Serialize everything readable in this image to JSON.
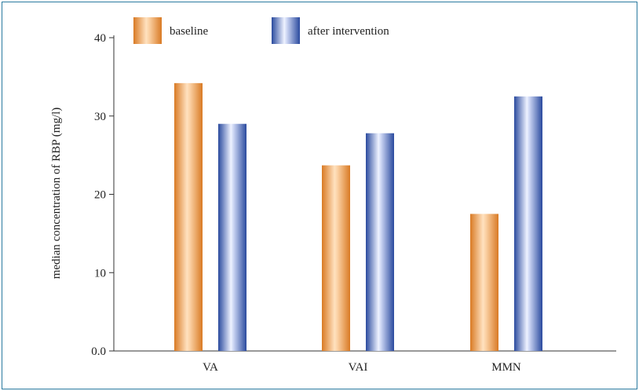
{
  "chart_data": {
    "type": "bar",
    "categories": [
      "VA",
      "VAI",
      "MMN"
    ],
    "series": [
      {
        "name": "baseline",
        "values": [
          34.2,
          23.7,
          17.5
        ],
        "color": "#e8892f"
      },
      {
        "name": "after intervention",
        "values": [
          29.0,
          27.8,
          32.5
        ],
        "color": "#2f4fa8"
      }
    ],
    "ylabel": "median concentration of RBP (mg/l)",
    "xlabel": "",
    "yticks": [
      "0.0",
      "10",
      "20",
      "30",
      "40"
    ],
    "ylim": [
      0,
      40
    ],
    "legend_position": "top",
    "grid": false,
    "frame_color": "#2a7aa0"
  }
}
